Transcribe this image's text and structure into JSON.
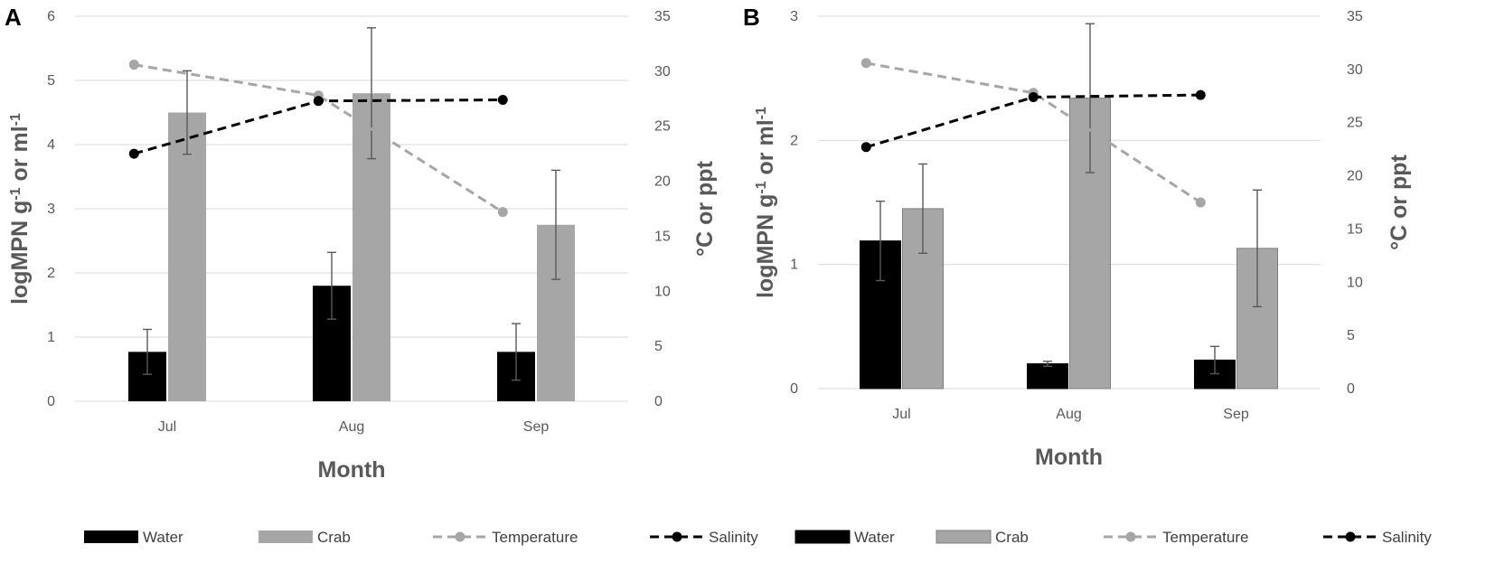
{
  "chart_data": [
    {
      "panel": "A",
      "type": "bar",
      "categories": [
        "Jul",
        "Aug",
        "Sep"
      ],
      "xlabel": "Month",
      "ylabel_main": "logMPN g",
      "ylabel_sup1": "-1",
      "ylabel_mid": " or ml",
      "ylabel_sup2": "-1",
      "y2label": "°C or ppt",
      "ylim": [
        0,
        6
      ],
      "yticks": [
        0,
        1,
        2,
        3,
        4,
        5,
        6
      ],
      "y2lim": [
        0,
        35
      ],
      "y2ticks": [
        0,
        5,
        10,
        15,
        20,
        25,
        30,
        35
      ],
      "series": [
        {
          "name": "Water",
          "kind": "bar",
          "values": [
            0.77,
            1.8,
            0.77
          ],
          "errors": [
            0.35,
            0.52,
            0.44
          ],
          "color": "#000000"
        },
        {
          "name": "Crab",
          "kind": "bar",
          "values": [
            4.5,
            4.8,
            2.75
          ],
          "errors": [
            0.65,
            1.02,
            0.85
          ],
          "color": "#a6a6a6"
        },
        {
          "name": "Temperature",
          "kind": "line",
          "axis": "secondary",
          "values": [
            30.6,
            27.8,
            17.2
          ],
          "color": "#a6a6a6"
        },
        {
          "name": "Salinity",
          "kind": "line",
          "axis": "secondary",
          "values": [
            22.5,
            27.3,
            27.4
          ],
          "color": "#000000"
        }
      ]
    },
    {
      "panel": "B",
      "type": "bar",
      "categories": [
        "Jul",
        "Aug",
        "Sep"
      ],
      "xlabel": "Month",
      "ylabel_main": "logMPN g",
      "ylabel_sup1": "-1",
      "ylabel_mid": " or ml",
      "ylabel_sup2": "-1",
      "y2label": "°C or ppt",
      "ylim": [
        0,
        3
      ],
      "yticks": [
        0,
        1,
        2,
        3
      ],
      "y2lim": [
        0,
        35
      ],
      "y2ticks": [
        0,
        5,
        10,
        15,
        20,
        25,
        30,
        35
      ],
      "series": [
        {
          "name": "Water",
          "kind": "bar",
          "values": [
            1.19,
            0.2,
            0.23
          ],
          "errors": [
            0.32,
            0.02,
            0.11
          ],
          "color": "#000000"
        },
        {
          "name": "Crab",
          "kind": "bar",
          "values": [
            1.45,
            2.34,
            1.13
          ],
          "errors": [
            0.36,
            0.6,
            0.47
          ],
          "color": "#a6a6a6"
        },
        {
          "name": "Temperature",
          "kind": "line",
          "axis": "secondary",
          "values": [
            30.6,
            27.8,
            17.5
          ],
          "color": "#a6a6a6"
        },
        {
          "name": "Salinity",
          "kind": "line",
          "axis": "secondary",
          "values": [
            22.7,
            27.4,
            27.6
          ],
          "color": "#000000"
        }
      ]
    }
  ]
}
